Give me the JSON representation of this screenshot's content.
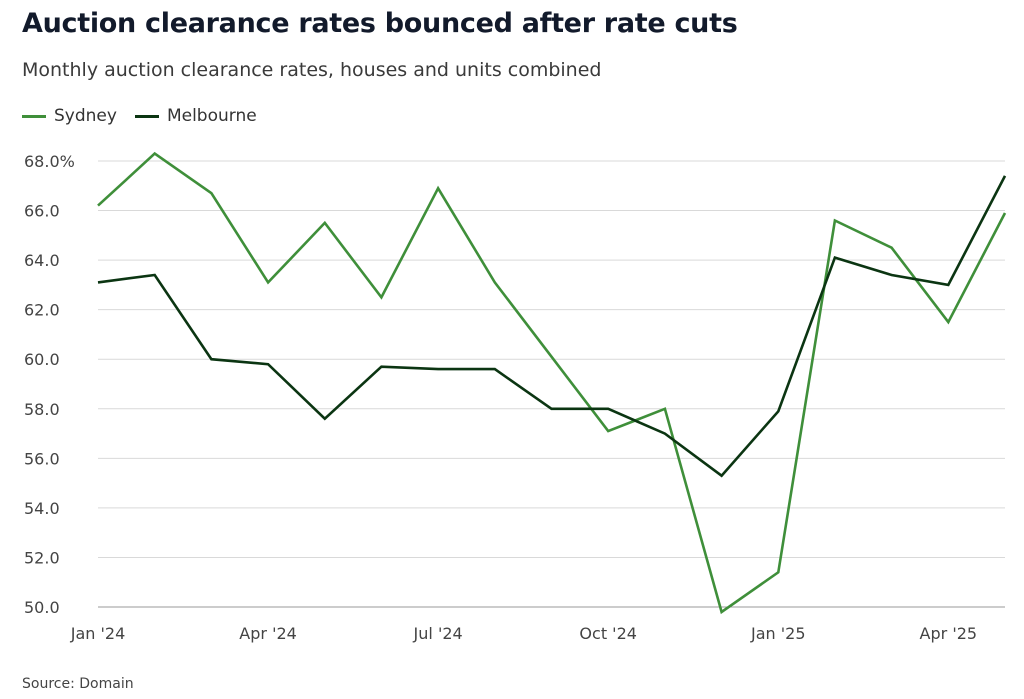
{
  "title": "Auction clearance rates bounced after rate cuts",
  "subtitle": "Monthly auction clearance rates, houses and units combined",
  "source": "Source: Domain",
  "colors": {
    "sydney": "#3f8f3a",
    "melbourne": "#0b3512",
    "grid": "#d9d9d9",
    "axis": "#444444"
  },
  "chart_data": {
    "type": "line",
    "x": [
      "2024-01",
      "2024-02",
      "2024-03",
      "2024-04",
      "2024-05",
      "2024-06",
      "2024-07",
      "2024-08",
      "2024-09",
      "2024-10",
      "2024-11",
      "2024-12",
      "2025-01",
      "2025-02",
      "2025-03",
      "2025-04",
      "2025-05"
    ],
    "xticks": [
      {
        "label": "Jan '24",
        "index": 0
      },
      {
        "label": "Apr '24",
        "index": 3
      },
      {
        "label": "Jul '24",
        "index": 6
      },
      {
        "label": "Oct '24",
        "index": 9
      },
      {
        "label": "Jan '25",
        "index": 12
      },
      {
        "label": "Apr '25",
        "index": 15
      }
    ],
    "yticks": [
      "68.0%",
      "66.0",
      "64.0",
      "62.0",
      "60.0",
      "58.0",
      "56.0",
      "54.0",
      "52.0",
      "50.0"
    ],
    "ylim": [
      50,
      68
    ],
    "ytick_values": [
      68,
      66,
      64,
      62,
      60,
      58,
      56,
      54,
      52,
      50
    ],
    "grid": true,
    "legend": "top-left",
    "series": [
      {
        "name": "Sydney",
        "color": "#3f8f3a",
        "values": [
          66.2,
          68.3,
          66.7,
          63.1,
          65.5,
          62.5,
          66.9,
          63.1,
          60.1,
          57.1,
          58.0,
          49.8,
          51.4,
          65.6,
          64.5,
          61.5,
          65.9
        ]
      },
      {
        "name": "Melbourne",
        "color": "#0b3512",
        "values": [
          63.1,
          63.4,
          60.0,
          59.8,
          57.6,
          59.7,
          59.6,
          59.6,
          58.0,
          58.0,
          57.0,
          55.3,
          57.9,
          64.1,
          63.4,
          63.0,
          67.4
        ]
      }
    ]
  }
}
